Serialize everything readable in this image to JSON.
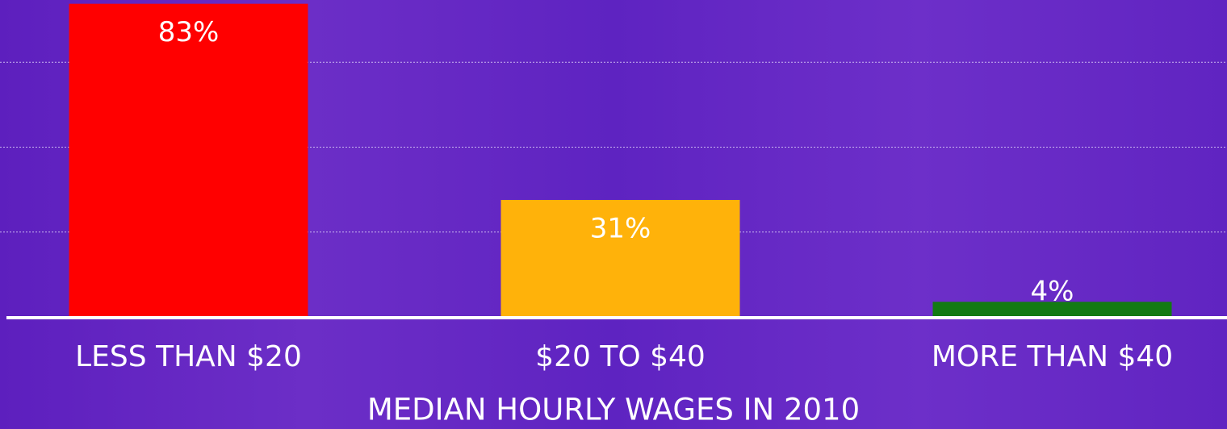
{
  "chart_data": {
    "type": "bar",
    "x_label": "MEDIAN HOURLY WAGES IN 2010",
    "categories": [
      "LESS THAN $20",
      "$20 TO $40",
      "MORE THAN $40"
    ],
    "values": [
      83,
      31,
      4
    ],
    "value_labels": [
      "83%",
      "31%",
      "4%"
    ],
    "colors": [
      "#ff0000",
      "#ffb20a",
      "#137a13"
    ],
    "ylim": [
      0,
      84
    ],
    "yticks": [
      22.5,
      45,
      67.5
    ],
    "grid": true
  }
}
